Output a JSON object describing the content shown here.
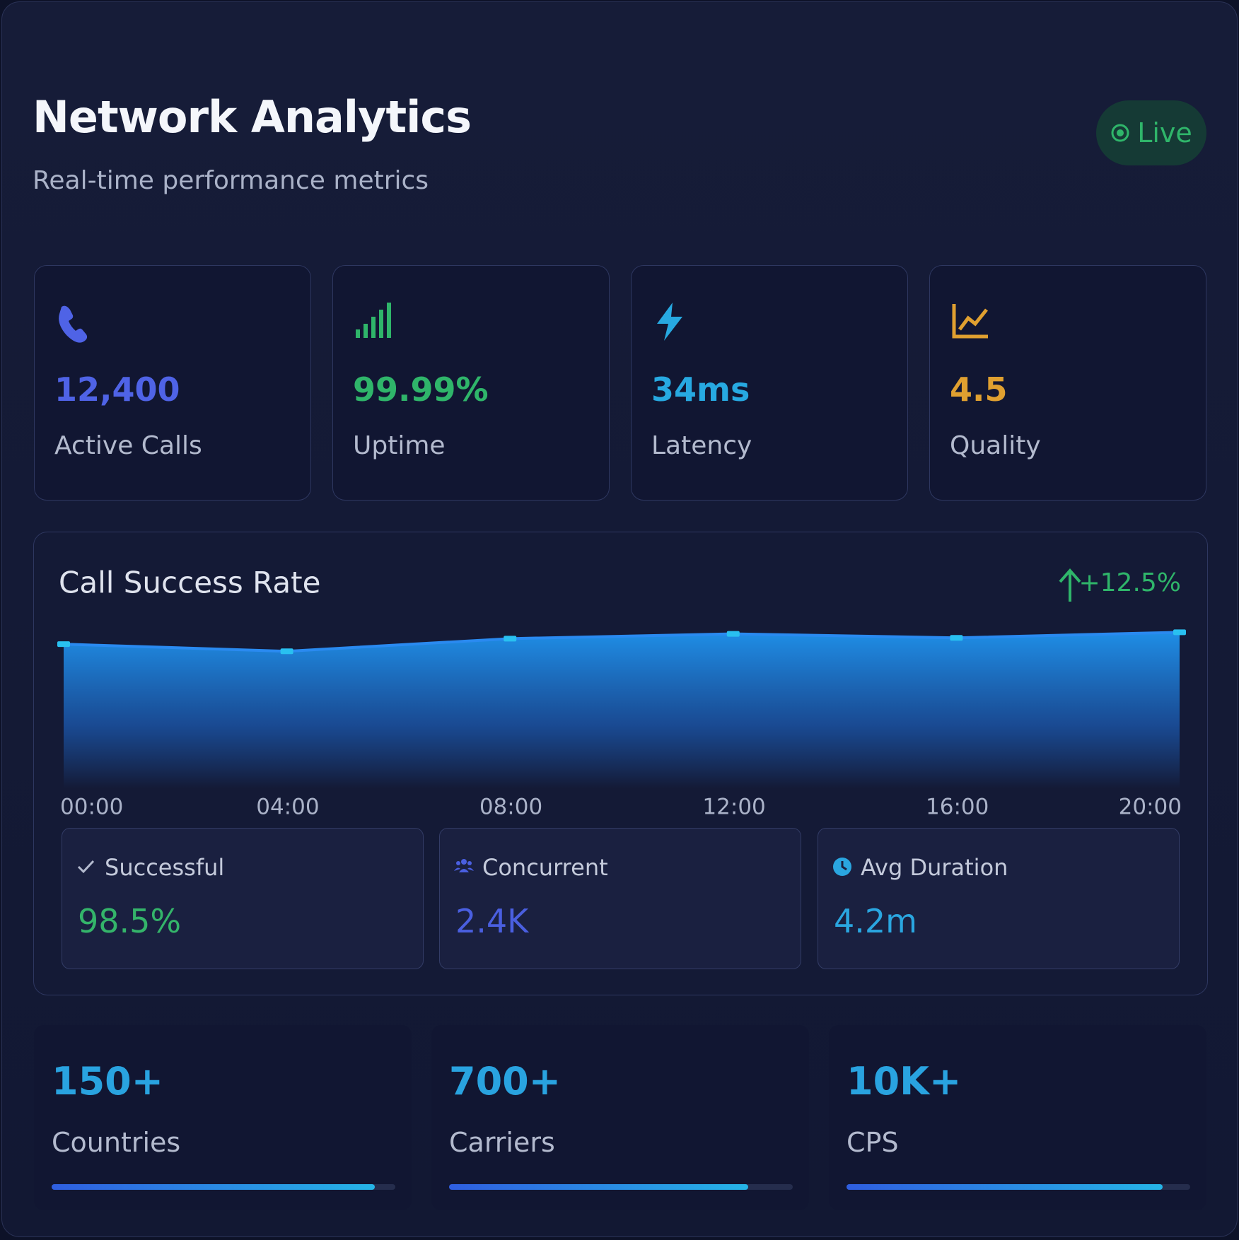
{
  "header": {
    "title": "Network Analytics",
    "subtitle": "Real-time performance metrics",
    "badge": "Live"
  },
  "metrics": [
    {
      "value": "12,400",
      "label": "Active Calls",
      "color": "#4f63e6"
    },
    {
      "value": "99.99%",
      "label": "Uptime",
      "color": "#2fb56a"
    },
    {
      "value": "34ms",
      "label": "Latency",
      "color": "#27a9e1"
    },
    {
      "value": "4.5",
      "label": "Quality",
      "color": "#e0a030"
    }
  ],
  "chart_data": {
    "type": "area",
    "title": "Call Success Rate",
    "change": "+12.5%",
    "categories": [
      "00:00",
      "04:00",
      "08:00",
      "12:00",
      "16:00",
      "20:00"
    ],
    "values": [
      91,
      86.5,
      94.5,
      97.5,
      95,
      98.5
    ],
    "ylim": [
      0,
      100
    ],
    "color": "#2a8af0"
  },
  "summary": [
    {
      "label": "Successful",
      "value": "98.5%",
      "color": "#34b46a"
    },
    {
      "label": "Concurrent",
      "value": "2.4K",
      "color": "#4a5fe0"
    },
    {
      "label": "Avg Duration",
      "value": "4.2m",
      "color": "#2aa6e0"
    }
  ],
  "stats": [
    {
      "value": "150+",
      "label": "Countries",
      "progress": 94
    },
    {
      "value": "700+",
      "label": "Carriers",
      "progress": 87
    },
    {
      "value": "10K+",
      "label": "CPS",
      "progress": 92
    }
  ]
}
